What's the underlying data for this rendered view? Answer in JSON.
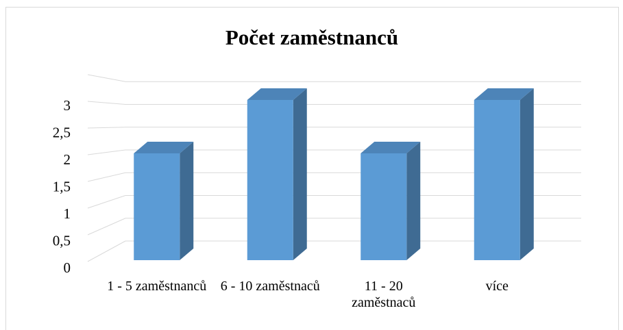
{
  "chart_data": {
    "type": "bar3d",
    "title": "Počet zaměstnanců",
    "categories": [
      "1 - 5 zaměstnanců",
      "6 - 10 zaměstnaců",
      "11 - 20 zaměstnaců",
      "více"
    ],
    "values": [
      2,
      3,
      2,
      3
    ],
    "color": "#5b9bd5",
    "ylim": [
      0,
      3.5
    ],
    "yticks": [
      0,
      {
        "value": 0.5,
        "label": "0,5"
      },
      1,
      {
        "value": 1.5,
        "label": "1,5"
      },
      2,
      {
        "value": 2.5,
        "label": "2,5"
      },
      3
    ],
    "grid": true
  }
}
